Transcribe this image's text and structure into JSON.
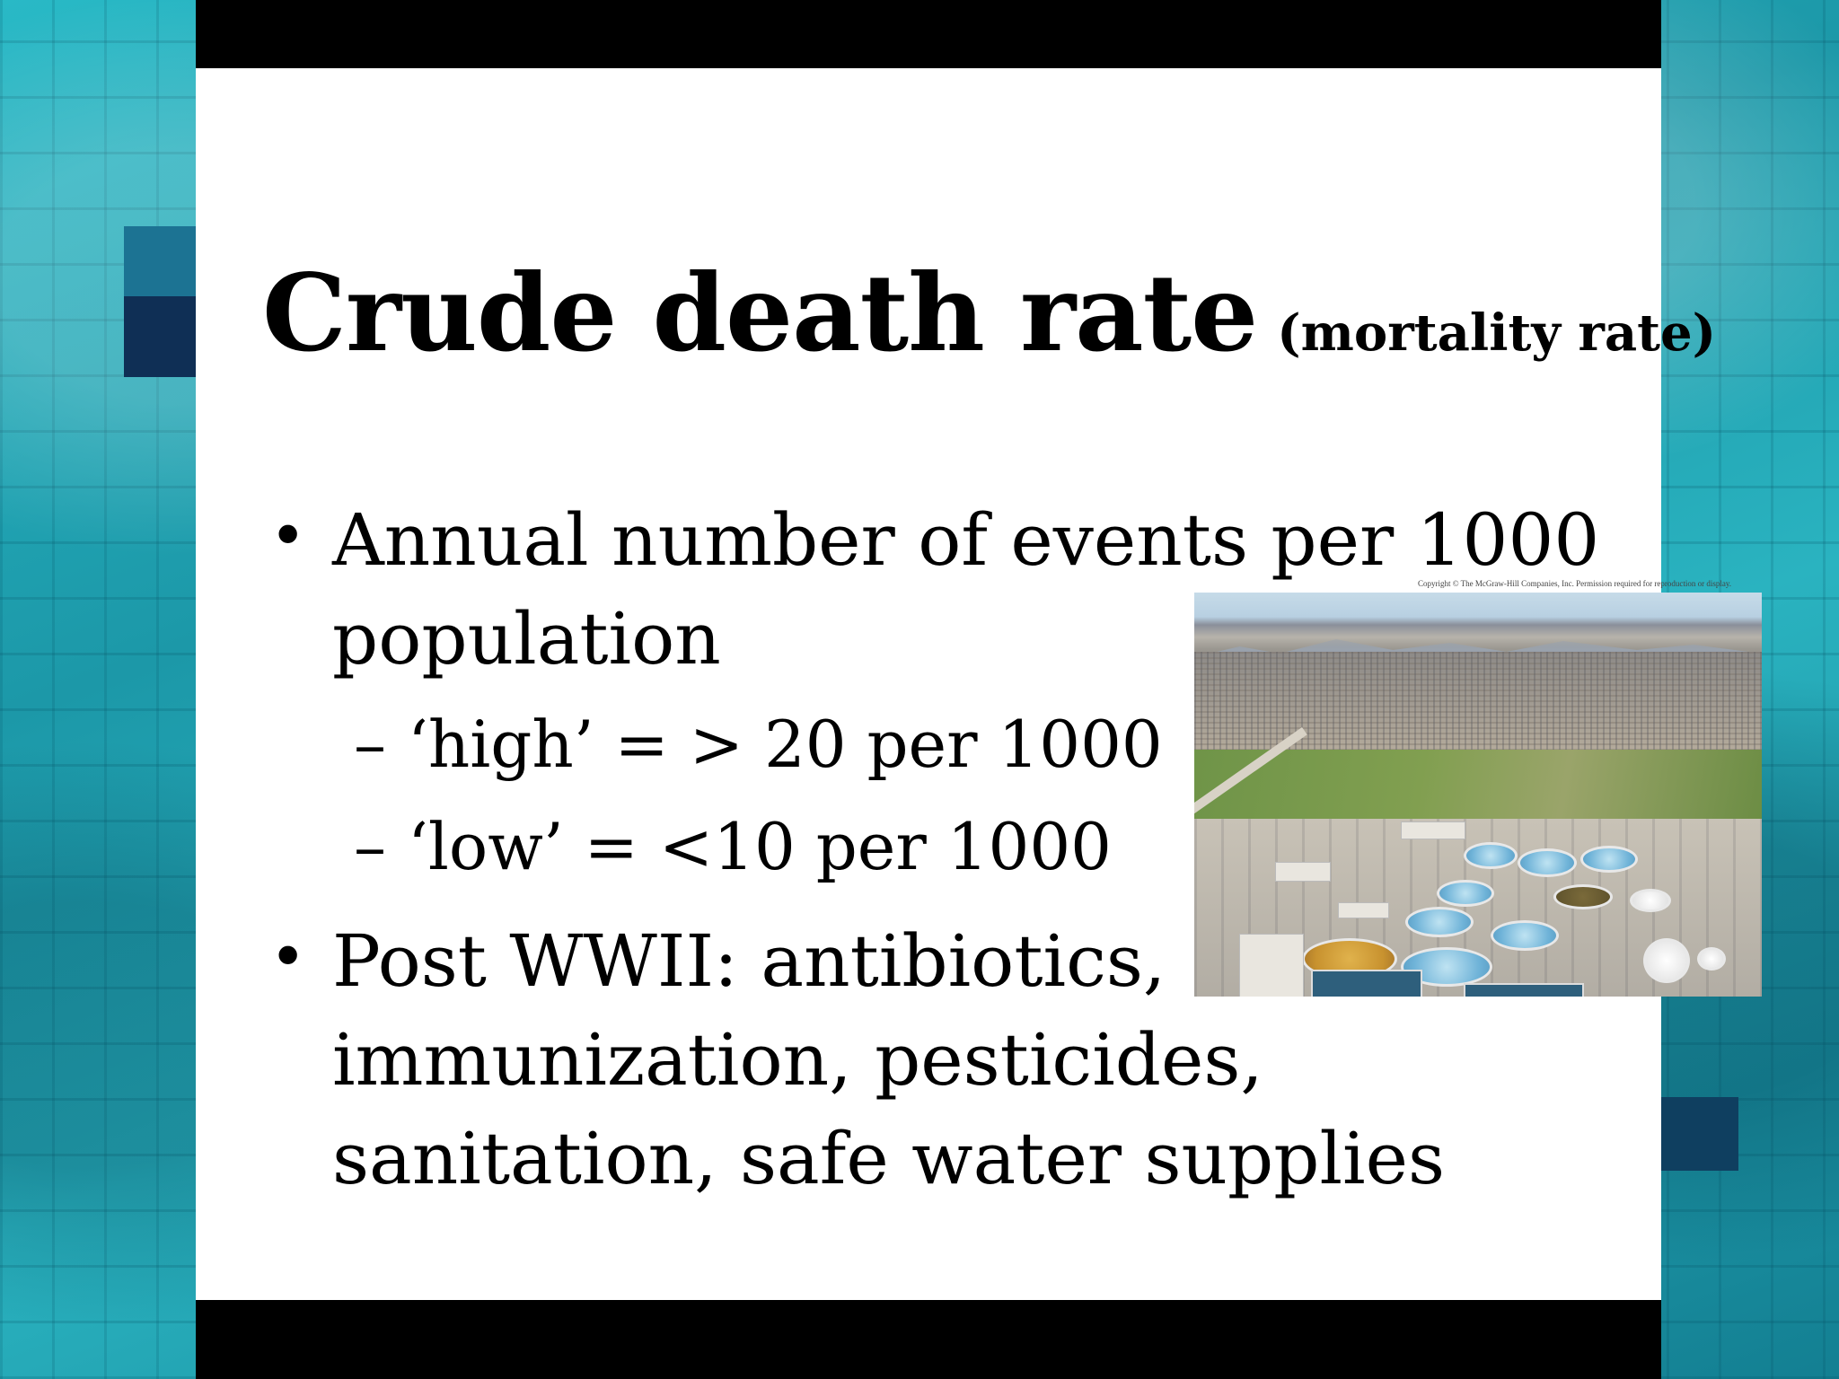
{
  "title": {
    "main": "Crude death rate",
    "sub": "(mortality rate)"
  },
  "bullets": [
    {
      "marker": "•",
      "lines": [
        "Annual number of events per 1000",
        "population"
      ],
      "sub": [
        {
          "dash": "–",
          "text": "‘high’ = > 20 per 1000"
        },
        {
          "dash": "–",
          "text": "‘low’ = <10 per 1000"
        }
      ]
    },
    {
      "marker": "•",
      "lines": [
        "Post WWII: antibiotics,",
        "immunization, pesticides,",
        "sanitation, safe water supplies"
      ]
    }
  ],
  "image": {
    "copyright": "Copyright © The McGraw-Hill Companies, Inc. Permission required for reproduction or display."
  },
  "colors": {
    "panel": "#ffffff",
    "bars": "#000000",
    "background": "#1c98a8",
    "text": "#000000"
  }
}
